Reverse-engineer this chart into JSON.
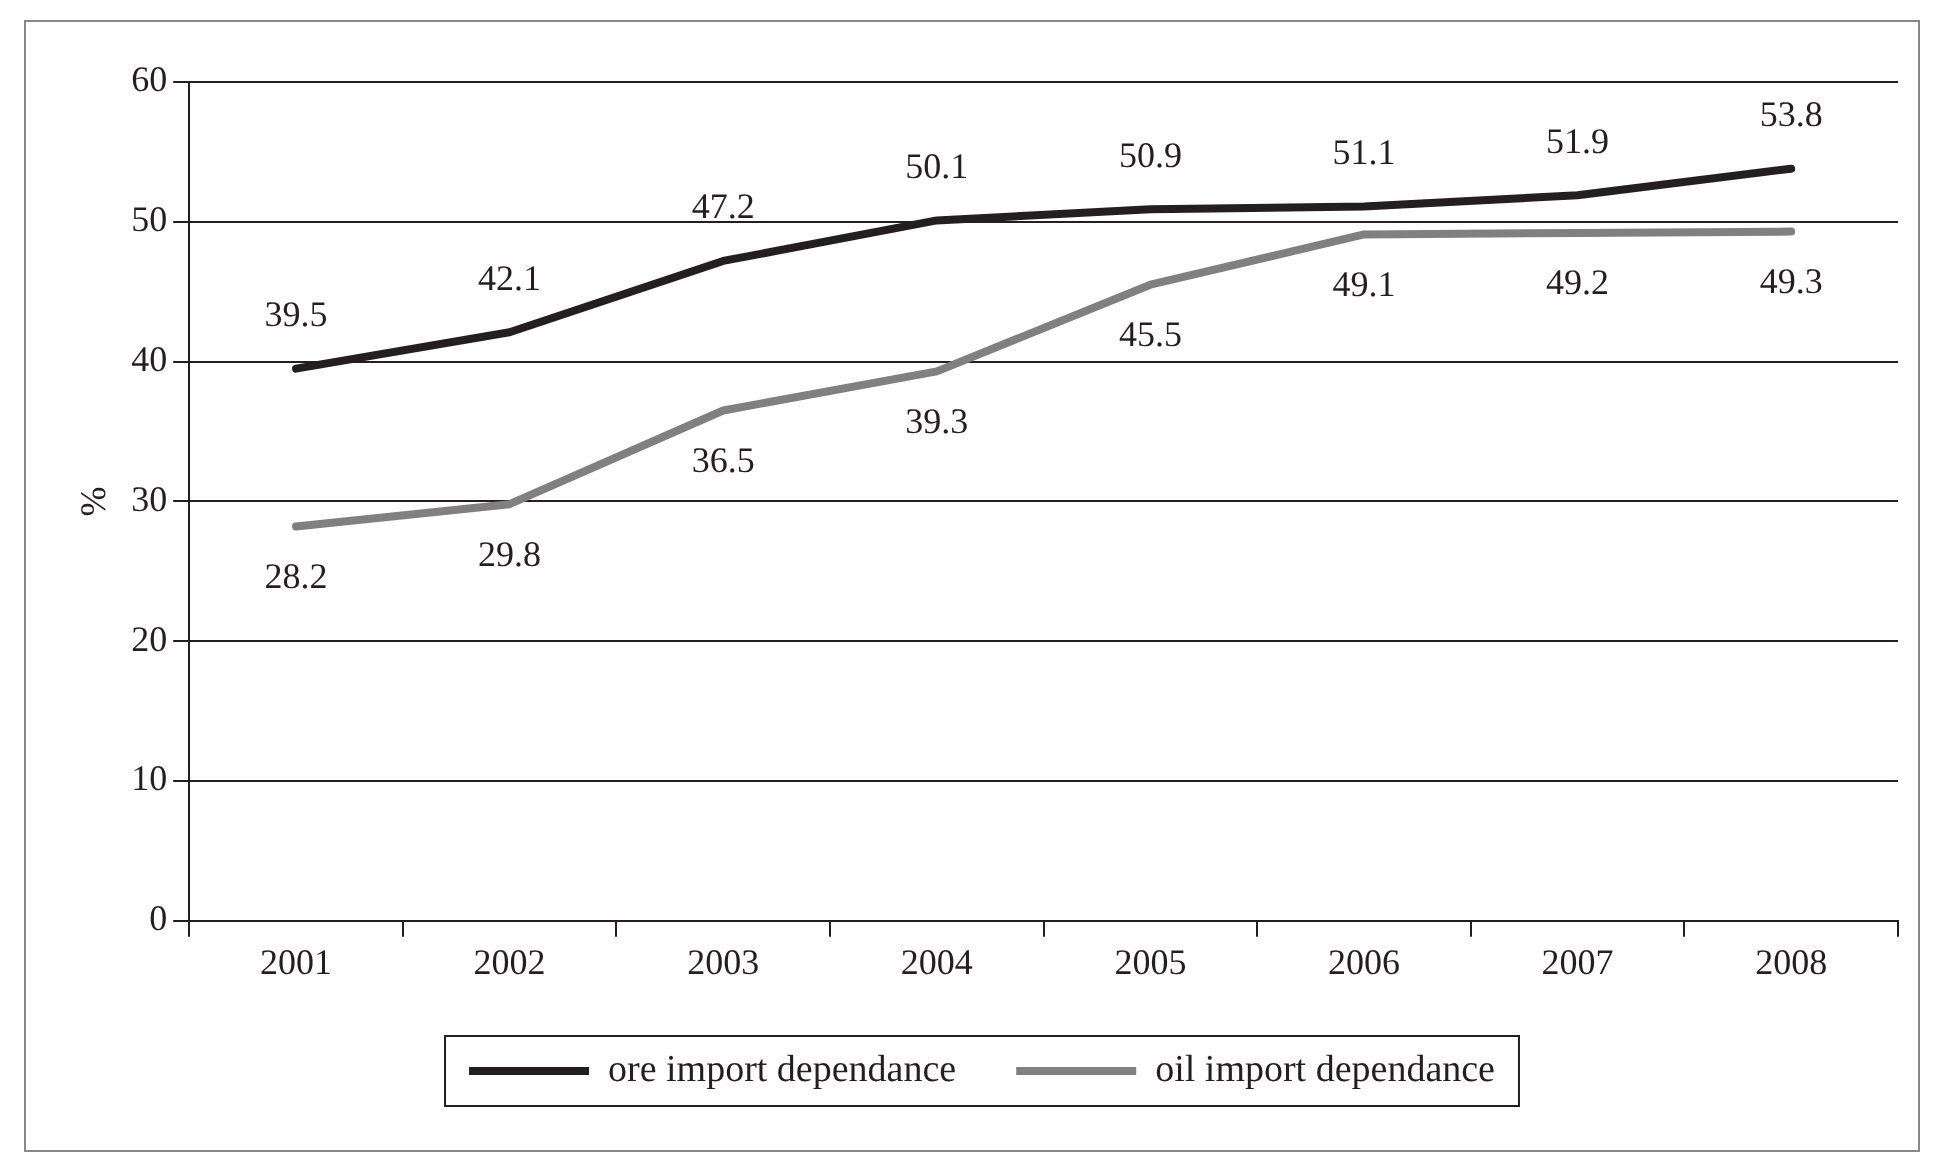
{
  "chart_data": {
    "type": "line",
    "ylabel": "%",
    "categories": [
      "2001",
      "2002",
      "2003",
      "2004",
      "2005",
      "2006",
      "2007",
      "2008"
    ],
    "series": [
      {
        "name": "ore import dependance",
        "color": "#231f20",
        "values": [
          39.5,
          42.1,
          47.2,
          50.1,
          50.9,
          51.1,
          51.9,
          53.8
        ]
      },
      {
        "name": "oil import dependance",
        "color": "#808080",
        "values": [
          28.2,
          29.8,
          36.5,
          39.3,
          45.5,
          49.1,
          49.2,
          49.3
        ]
      }
    ],
    "ylim": [
      0,
      60
    ],
    "yticks": [
      0,
      10,
      20,
      30,
      40,
      50,
      60
    ],
    "grid": "y",
    "legend": "bottom",
    "data_labels": true,
    "marker": "none",
    "line_style": "solid"
  }
}
